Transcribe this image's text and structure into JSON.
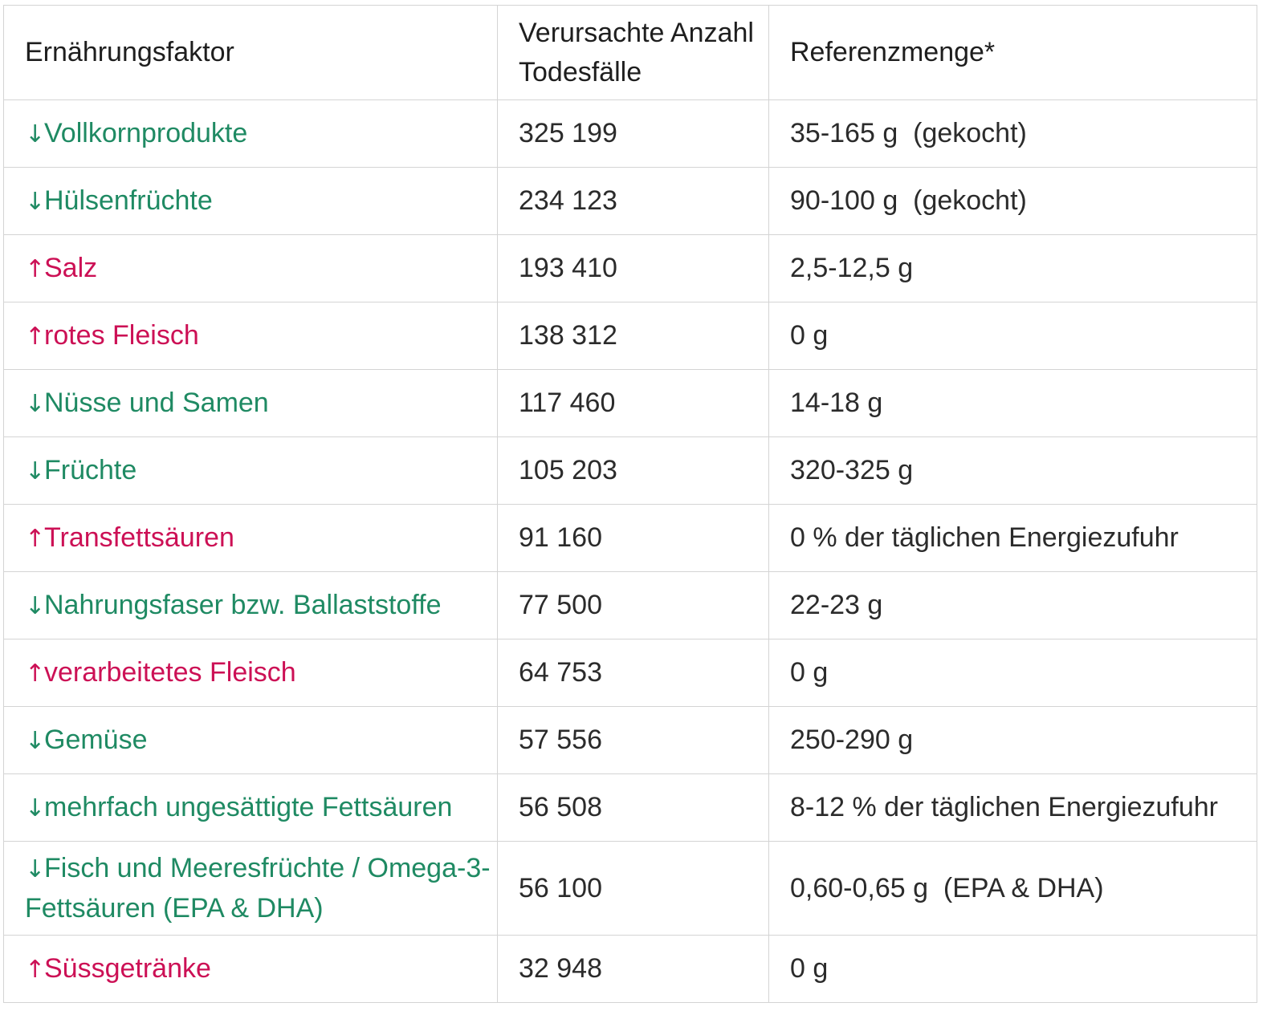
{
  "table": {
    "headers": [
      "Ernährungsfaktor",
      "Verursachte Anzahl Todesfälle",
      "Referenzmenge*"
    ],
    "rows": [
      {
        "arrow": "↓",
        "direction": "down",
        "factor": "Vollkornprodukte",
        "deaths": "325 199",
        "reference": "35-165 g  (gekocht)"
      },
      {
        "arrow": "↓",
        "direction": "down",
        "factor": "Hülsenfrüchte",
        "deaths": "234 123",
        "reference": "90-100 g  (gekocht)"
      },
      {
        "arrow": "↑",
        "direction": "up",
        "factor": "Salz",
        "deaths": "193 410",
        "reference": "2,5-12,5 g"
      },
      {
        "arrow": "↑",
        "direction": "up",
        "factor": "rotes Fleisch",
        "deaths": "138 312",
        "reference": "0 g"
      },
      {
        "arrow": "↓",
        "direction": "down",
        "factor": "Nüsse und Samen",
        "deaths": "117 460",
        "reference": "14-18 g"
      },
      {
        "arrow": "↓",
        "direction": "down",
        "factor": "Früchte",
        "deaths": "105 203",
        "reference": "320-325 g"
      },
      {
        "arrow": "↑",
        "direction": "up",
        "factor": "Transfettsäuren",
        "deaths": "91 160",
        "reference": "0 % der täglichen Energiezufuhr"
      },
      {
        "arrow": "↓",
        "direction": "down",
        "factor": "Nahrungsfaser bzw. Ballaststoffe",
        "deaths": "77 500",
        "reference": "22-23 g"
      },
      {
        "arrow": "↑",
        "direction": "up",
        "factor": "verarbeitetes Fleisch",
        "deaths": "64 753",
        "reference": "0 g"
      },
      {
        "arrow": "↓",
        "direction": "down",
        "factor": "Gemüse",
        "deaths": "57 556",
        "reference": "250-290 g"
      },
      {
        "arrow": "↓",
        "direction": "down",
        "factor": "mehrfach ungesättigte Fettsäuren",
        "deaths": "56 508",
        "reference": "8-12 % der täglichen Energiezufuhr"
      },
      {
        "arrow": "↓",
        "direction": "down",
        "factor": "Fisch und Meeresfrüchte / Omega-3-Fettsäuren (EPA & DHA)",
        "deaths": "56 100",
        "reference": "0,60-0,65 g  (EPA & DHA)"
      },
      {
        "arrow": "↑",
        "direction": "up",
        "factor": "Süssgetränke",
        "deaths": "32 948",
        "reference": "0 g"
      }
    ]
  },
  "colors": {
    "decrease": "#1f8a63",
    "increase": "#cc1055",
    "text": "#2b2b2b",
    "border": "#d4d4d4"
  }
}
